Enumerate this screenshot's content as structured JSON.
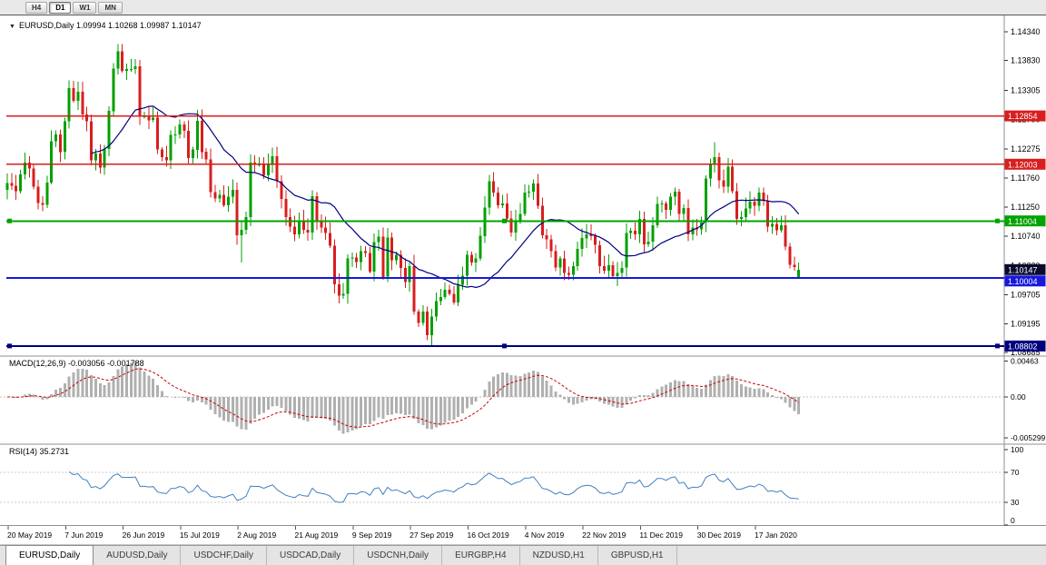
{
  "toolbar": {
    "periods": [
      {
        "label": "H4",
        "active": false
      },
      {
        "label": "D1",
        "active": true
      },
      {
        "label": "W1",
        "active": false
      },
      {
        "label": "MN",
        "active": false
      }
    ]
  },
  "info_bar": {
    "text": "EURUSD,Daily 1.09994 1.10268 1.09987 1.10147"
  },
  "indicators": {
    "macd_label": "MACD(12,26,9) -0.003056 -0.001788",
    "rsi_label": "RSI(14) 35.2731",
    "macd_axis": [
      "0.00463",
      "0.00",
      "-0.005299"
    ],
    "rsi_axis": [
      "100",
      "70",
      "30",
      "0"
    ]
  },
  "price_axis": {
    "ticks": [
      "1.14340",
      "1.13830",
      "1.13305",
      "1.12790",
      "1.12275",
      "1.11760",
      "1.11250",
      "1.10740",
      "1.10220",
      "1.09705",
      "1.09195",
      "1.08685"
    ]
  },
  "hlines": [
    {
      "price": 1.12854,
      "label": "1.12854",
      "color": "#d81e1e",
      "width": 1.4,
      "handles": false
    },
    {
      "price": 1.12003,
      "label": "1.12003",
      "color": "#d81e1e",
      "width": 1.4,
      "handles": false
    },
    {
      "price": 1.11004,
      "label": "1.11004",
      "color": "#00a400",
      "width": 2,
      "handles": true
    },
    {
      "price": 1.10004,
      "label": "1.10004",
      "color": "#1717dd",
      "width": 2,
      "handles": false
    },
    {
      "price": 1.08802,
      "label": "1.08802",
      "color": "#000080",
      "width": 2,
      "handles": true
    }
  ],
  "current_price": {
    "value": 1.10147,
    "label": "1.10147",
    "box_color": "#0a0a2e"
  },
  "dates": [
    "20 May 2019",
    "7 Jun 2019",
    "26 Jun 2019",
    "15 Jul 2019",
    "2 Aug 2019",
    "21 Aug 2019",
    "9 Sep 2019",
    "27 Sep 2019",
    "16 Oct 2019",
    "4 Nov 2019",
    "22 Nov 2019",
    "11 Dec 2019",
    "30 Dec 2019",
    "17 Jan 2020"
  ],
  "tabs": [
    {
      "label": "EURUSD,Daily",
      "active": true
    },
    {
      "label": "AUDUSD,Daily",
      "active": false
    },
    {
      "label": "USDCHF,Daily",
      "active": false
    },
    {
      "label": "USDCAD,Daily",
      "active": false
    },
    {
      "label": "USDCNH,Daily",
      "active": false
    },
    {
      "label": "EURGBP,H4",
      "active": false
    },
    {
      "label": "NZDUSD,H1",
      "active": false
    },
    {
      "label": "GBPUSD,H1",
      "active": false
    }
  ],
  "chart_data": {
    "type": "candlestick",
    "symbol": "EURUSD",
    "timeframe": "Daily",
    "title": "EURUSD,Daily",
    "last_ohlc": {
      "open": 1.09994,
      "high": 1.10268,
      "low": 1.09987,
      "close": 1.10147
    },
    "ylim": [
      1.0875,
      1.1448
    ],
    "colors": {
      "bull": "#00a000",
      "bear": "#d81e1e",
      "ma": "#000080",
      "macd_hist": "#b0b0b0",
      "macd_signal": "#cc0000",
      "rsi": "#4080c0"
    },
    "ma_period": 20,
    "candles": {
      "first_open": 1.1155,
      "closes": [
        1.1167,
        1.1162,
        1.1153,
        1.1182,
        1.1203,
        1.1193,
        1.1161,
        1.1132,
        1.1129,
        1.1168,
        1.1241,
        1.1253,
        1.1222,
        1.1276,
        1.1334,
        1.1312,
        1.1328,
        1.1288,
        1.1276,
        1.1207,
        1.1219,
        1.1194,
        1.1227,
        1.1294,
        1.1369,
        1.1399,
        1.1365,
        1.1368,
        1.1368,
        1.1373,
        1.1285,
        1.1285,
        1.1278,
        1.1282,
        1.1226,
        1.1213,
        1.1207,
        1.1252,
        1.1253,
        1.127,
        1.1259,
        1.1211,
        1.1226,
        1.1277,
        1.1222,
        1.1209,
        1.1151,
        1.114,
        1.1146,
        1.1128,
        1.1143,
        1.1155,
        1.1075,
        1.1085,
        1.1107,
        1.1203,
        1.12,
        1.12,
        1.1181,
        1.1199,
        1.1214,
        1.117,
        1.1139,
        1.1107,
        1.109,
        1.1077,
        1.11,
        1.1085,
        1.108,
        1.1144,
        1.11,
        1.1089,
        1.1079,
        1.1057,
        1.0989,
        1.0969,
        1.0972,
        1.1034,
        1.1036,
        1.1028,
        1.1047,
        1.1044,
        1.1011,
        1.1063,
        1.1073,
        1.1002,
        1.1071,
        1.1031,
        1.1041,
        1.1018,
        1.0993,
        1.1021,
        1.0941,
        1.0921,
        1.0941,
        1.0899,
        1.0932,
        1.0959,
        1.0966,
        1.0979,
        1.0972,
        1.0957,
        1.0988,
        1.1004,
        1.1041,
        1.1027,
        1.1034,
        1.1074,
        1.1124,
        1.117,
        1.115,
        1.1128,
        1.1131,
        1.1105,
        1.108,
        1.11,
        1.1113,
        1.115,
        1.1152,
        1.1166,
        1.1127,
        1.1075,
        1.1068,
        1.1047,
        1.1018,
        1.1034,
        1.1009,
        1.1006,
        1.1021,
        1.1051,
        1.107,
        1.1077,
        1.1074,
        1.1058,
        1.1021,
        1.1013,
        1.1022,
        1.1003,
        1.1009,
        1.1018,
        1.1079,
        1.1083,
        1.1077,
        1.1104,
        1.1059,
        1.1064,
        1.1093,
        1.113,
        1.1131,
        1.112,
        1.1143,
        1.1152,
        1.1113,
        1.1123,
        1.1077,
        1.1089,
        1.1086,
        1.1098,
        1.1175,
        1.1199,
        1.1213,
        1.1172,
        1.1161,
        1.1196,
        1.1153,
        1.1104,
        1.1107,
        1.1122,
        1.1134,
        1.1127,
        1.115,
        1.1136,
        1.109,
        1.1095,
        1.1084,
        1.1093,
        1.1055,
        1.1023,
        1.1019,
        1.10147
      ],
      "wick_overrides": {
        "14": {
          "high": 1.1348
        },
        "26": {
          "high": 1.1412
        },
        "53": {
          "low": 1.1027
        },
        "95": {
          "low": 1.089
        },
        "96": {
          "low": 1.0879
        },
        "160": {
          "high": 1.1239
        },
        "179": {
          "open": 1.09994,
          "high": 1.10268,
          "low": 1.09987
        }
      }
    },
    "macd": {
      "params": [
        12,
        26,
        9
      ],
      "last_main": -0.003056,
      "last_signal": -0.001788,
      "axis_max": 0.00463,
      "axis_min": -0.005299
    },
    "rsi": {
      "period": 14,
      "last": 35.2731,
      "levels": [
        30,
        70
      ],
      "axis": [
        0,
        100
      ]
    }
  }
}
